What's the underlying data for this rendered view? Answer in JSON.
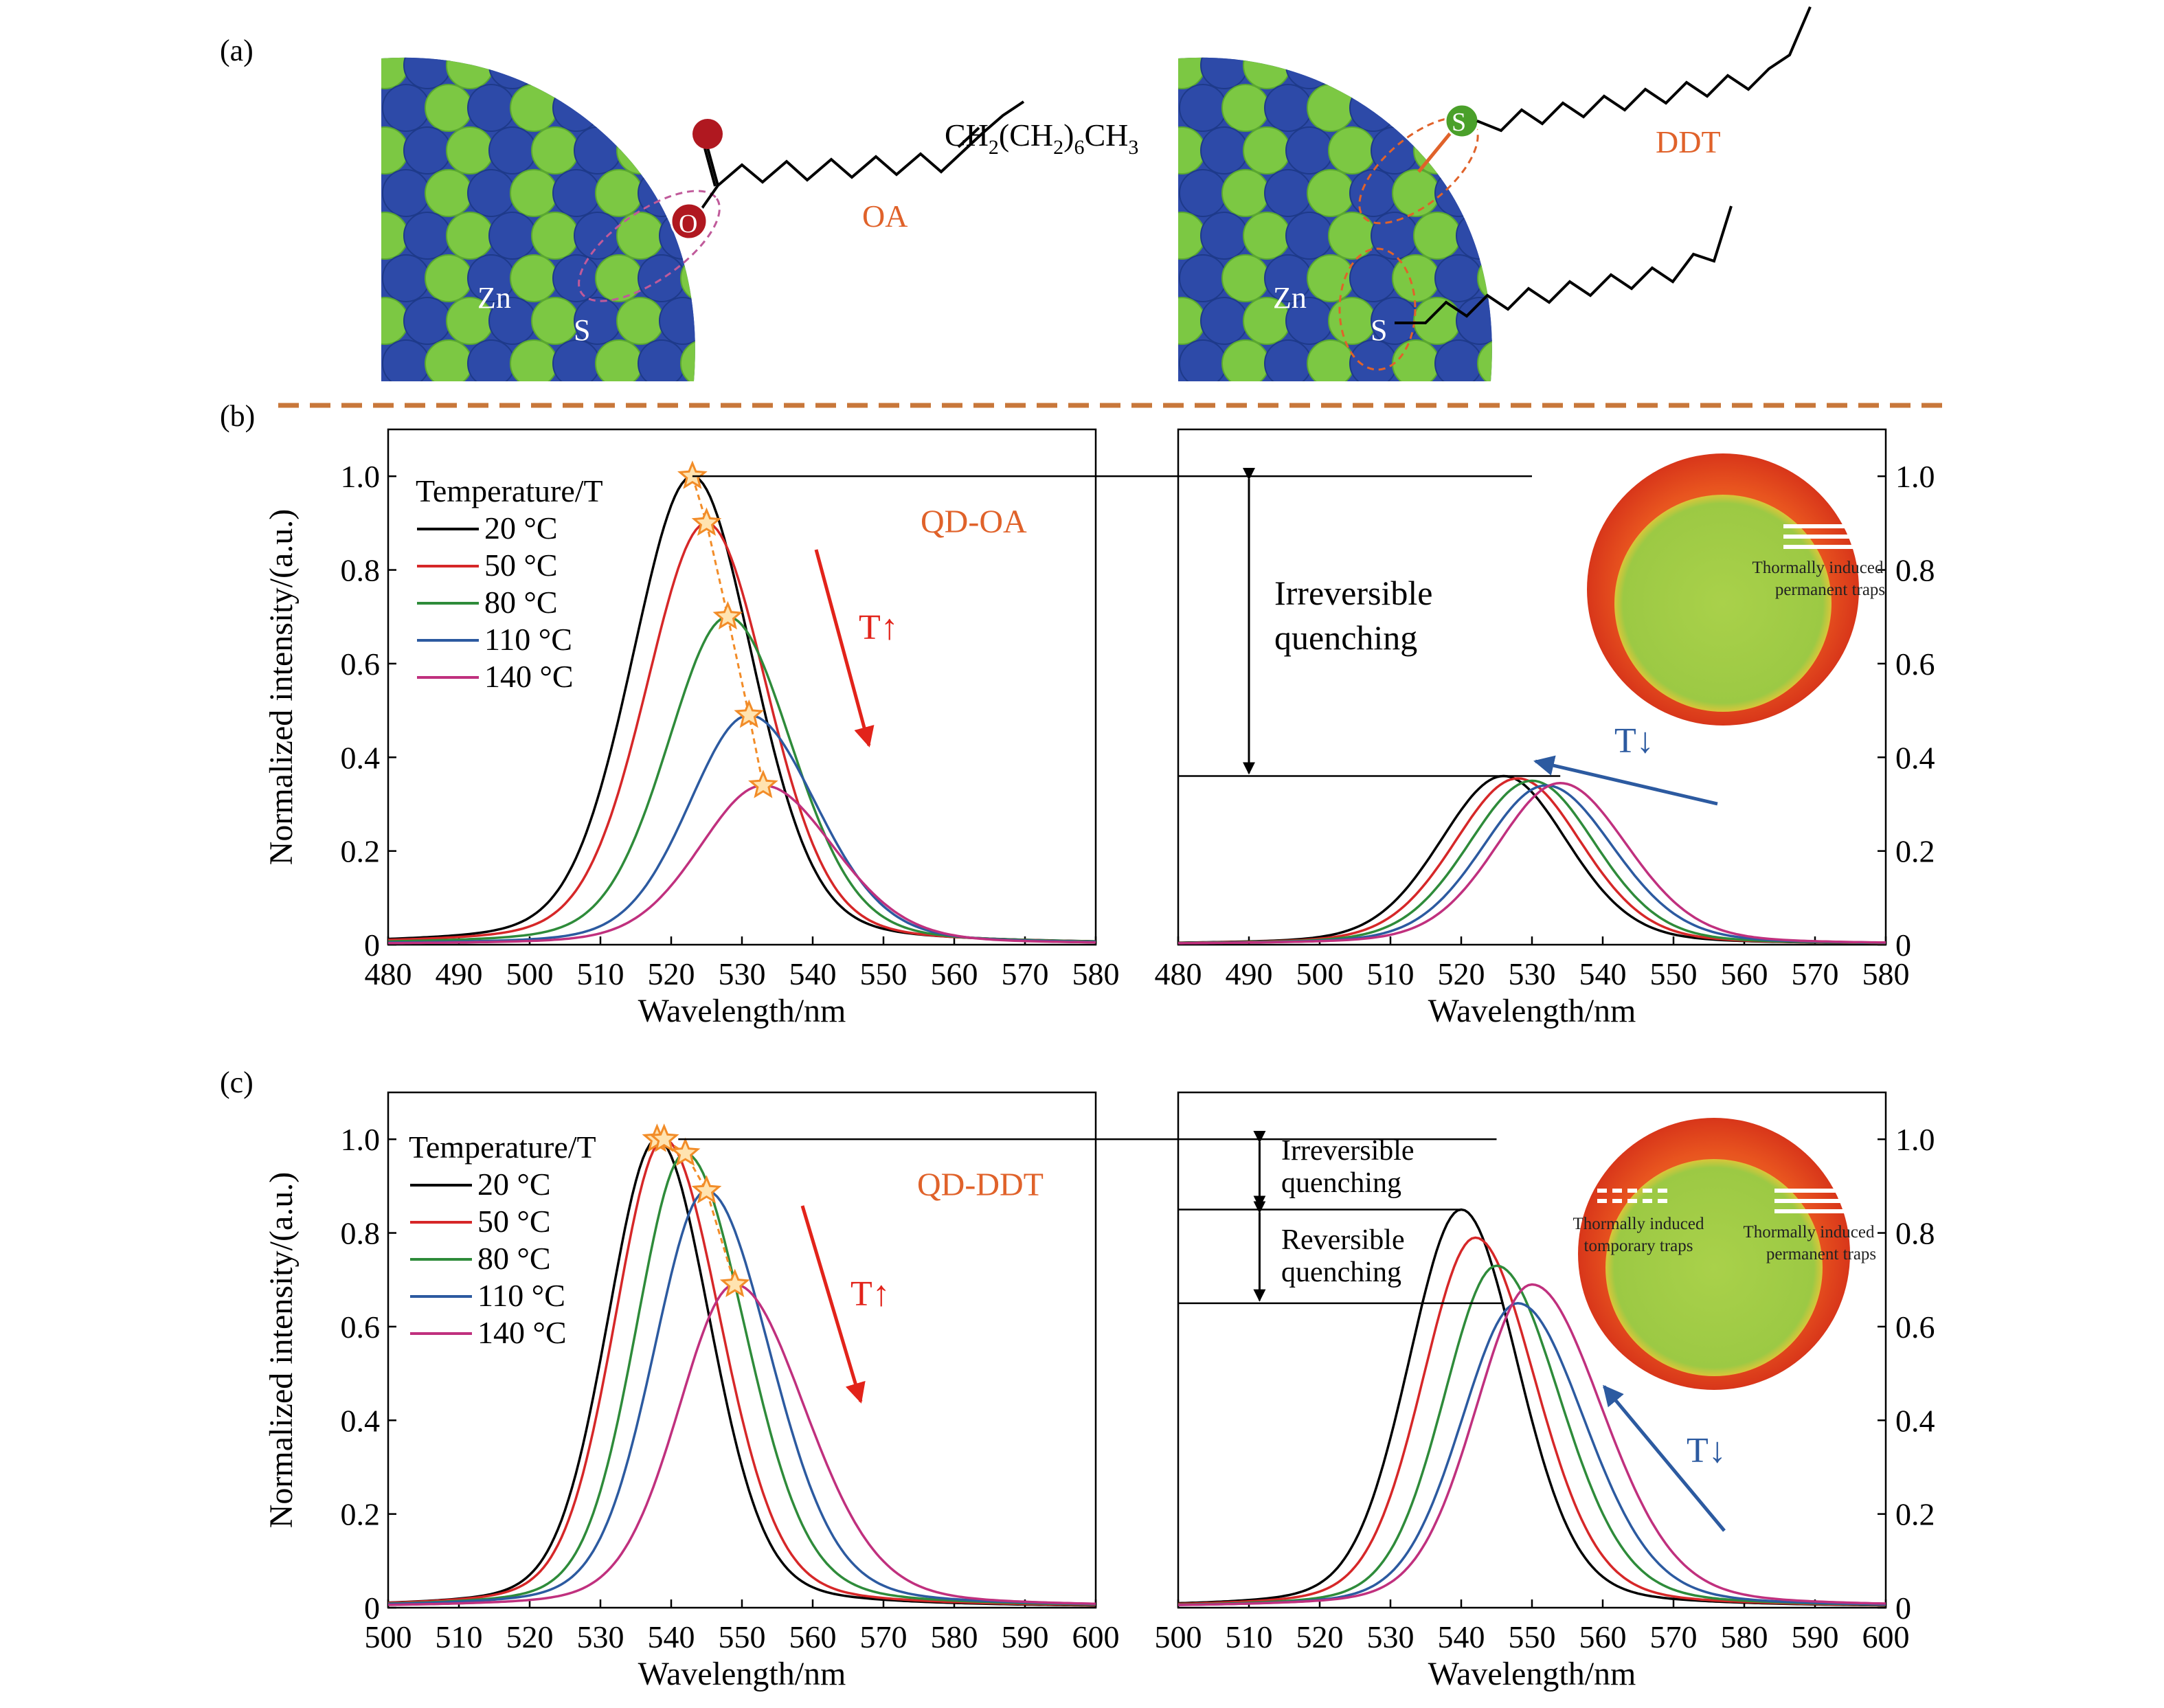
{
  "panel_labels": {
    "a": "(a)",
    "b": "(b)",
    "c": "(c)"
  },
  "illustration": {
    "left": {
      "zn": "Zn",
      "s": "S",
      "o": "O",
      "chain_label": "CH2(CH2)6CH3",
      "name": "OA"
    },
    "right": {
      "zn": "Zn",
      "s_surface": "S",
      "s_ligand": "S",
      "name": "DDT"
    }
  },
  "colors": {
    "orange_text": "#e0622a",
    "dashed_divider": "#c8773a",
    "arrow_red": "#e2231a",
    "arrow_blue": "#2c5aa0",
    "star": "#f28c28",
    "zn": "#2d4aa8",
    "s": "#7cc843",
    "series": [
      "#000000",
      "#d62728",
      "#2e8b3a",
      "#2c5aa0",
      "#c0307e"
    ]
  },
  "legend": {
    "title": "Temperature/T",
    "entries": [
      "20 °C",
      "50 °C",
      "80 °C",
      "110 °C",
      "140 °C"
    ]
  },
  "annotations": {
    "qd_oa": "QD-OA",
    "qd_ddt": "QD-DDT",
    "t_up": "T↑",
    "t_down": "T↓",
    "irreversible": "Irreversible",
    "quenching": "quenching",
    "reversible": "Reversible",
    "perm_traps_1": "Thormally induced",
    "perm_traps_2": "permanent traps",
    "temp_traps_1": "Thormally induced",
    "temp_traps_2": "tomporary traps"
  },
  "chart_data": [
    {
      "id": "b-left",
      "type": "line",
      "xlabel": "Wavelength/nm",
      "ylabel": "Normalized intensity/(a.u.)",
      "xlim": [
        480,
        580
      ],
      "ylim": [
        0,
        1.1
      ],
      "xticks": [
        480,
        490,
        500,
        510,
        520,
        530,
        540,
        550,
        560,
        570,
        580
      ],
      "yticks": [
        0,
        0.2,
        0.4,
        0.6,
        0.8,
        1.0
      ],
      "series": [
        {
          "name": "20 °C",
          "peak_x": 523,
          "peak_y": 1.0,
          "sigma_left": 8.5,
          "sigma_right": 8.5
        },
        {
          "name": "50 °C",
          "peak_x": 525,
          "peak_y": 0.9,
          "sigma_left": 8.5,
          "sigma_right": 8.5
        },
        {
          "name": "80 °C",
          "peak_x": 528,
          "peak_y": 0.7,
          "sigma_left": 8.5,
          "sigma_right": 9
        },
        {
          "name": "110 °C",
          "peak_x": 531,
          "peak_y": 0.49,
          "sigma_left": 8.5,
          "sigma_right": 9.5
        },
        {
          "name": "140 °C",
          "peak_x": 533,
          "peak_y": 0.34,
          "sigma_left": 9,
          "sigma_right": 10
        }
      ]
    },
    {
      "id": "b-right",
      "type": "line",
      "xlabel": "Wavelength/nm",
      "xlim": [
        480,
        580
      ],
      "ylim": [
        0,
        1.1
      ],
      "xticks": [
        480,
        490,
        500,
        510,
        520,
        530,
        540,
        550,
        560,
        570,
        580
      ],
      "yticks": [
        0,
        0.2,
        0.4,
        0.6,
        0.8,
        1.0
      ],
      "reference_levels": [
        1.0,
        0.36
      ],
      "series": [
        {
          "name": "20 °C",
          "peak_x": 526,
          "peak_y": 0.36,
          "sigma_left": 9,
          "sigma_right": 9
        },
        {
          "name": "50 °C",
          "peak_x": 528,
          "peak_y": 0.355,
          "sigma_left": 9,
          "sigma_right": 9
        },
        {
          "name": "80 °C",
          "peak_x": 530,
          "peak_y": 0.35,
          "sigma_left": 9,
          "sigma_right": 9
        },
        {
          "name": "110 °C",
          "peak_x": 532,
          "peak_y": 0.34,
          "sigma_left": 9,
          "sigma_right": 9.5
        },
        {
          "name": "140 °C",
          "peak_x": 534,
          "peak_y": 0.345,
          "sigma_left": 9,
          "sigma_right": 9.5
        }
      ]
    },
    {
      "id": "c-left",
      "type": "line",
      "xlabel": "Wavelength/nm",
      "ylabel": "Normalized intensity/(a.u.)",
      "xlim": [
        500,
        600
      ],
      "ylim": [
        0,
        1.1
      ],
      "xticks": [
        500,
        510,
        520,
        530,
        540,
        550,
        560,
        570,
        580,
        590,
        600
      ],
      "yticks": [
        0,
        0.2,
        0.4,
        0.6,
        0.8,
        1.0
      ],
      "series": [
        {
          "name": "20 °C",
          "peak_x": 538,
          "peak_y": 1.0,
          "sigma_left": 7,
          "sigma_right": 7.5
        },
        {
          "name": "50 °C",
          "peak_x": 539,
          "peak_y": 1.0,
          "sigma_left": 7,
          "sigma_right": 8
        },
        {
          "name": "80 °C",
          "peak_x": 542,
          "peak_y": 0.97,
          "sigma_left": 7,
          "sigma_right": 8.5
        },
        {
          "name": "110 °C",
          "peak_x": 545,
          "peak_y": 0.89,
          "sigma_left": 7.5,
          "sigma_right": 9
        },
        {
          "name": "140 °C",
          "peak_x": 549,
          "peak_y": 0.69,
          "sigma_left": 8,
          "sigma_right": 10
        }
      ]
    },
    {
      "id": "c-right",
      "type": "line",
      "xlabel": "Wavelength/nm",
      "xlim": [
        500,
        600
      ],
      "ylim": [
        0,
        1.1
      ],
      "xticks": [
        500,
        510,
        520,
        530,
        540,
        550,
        560,
        570,
        580,
        590,
        600
      ],
      "yticks": [
        0,
        0.2,
        0.4,
        0.6,
        0.8,
        1.0
      ],
      "reference_levels": [
        1.0,
        0.85,
        0.65
      ],
      "series": [
        {
          "name": "20 °C",
          "peak_x": 540,
          "peak_y": 0.85,
          "sigma_left": 7.5,
          "sigma_right": 8
        },
        {
          "name": "50 °C",
          "peak_x": 542,
          "peak_y": 0.79,
          "sigma_left": 7.5,
          "sigma_right": 8.5
        },
        {
          "name": "80 °C",
          "peak_x": 545,
          "peak_y": 0.73,
          "sigma_left": 7.5,
          "sigma_right": 9
        },
        {
          "name": "110 °C",
          "peak_x": 548,
          "peak_y": 0.65,
          "sigma_left": 8,
          "sigma_right": 9.5
        },
        {
          "name": "140 °C",
          "peak_x": 550,
          "peak_y": 0.69,
          "sigma_left": 8,
          "sigma_right": 10
        }
      ]
    }
  ]
}
